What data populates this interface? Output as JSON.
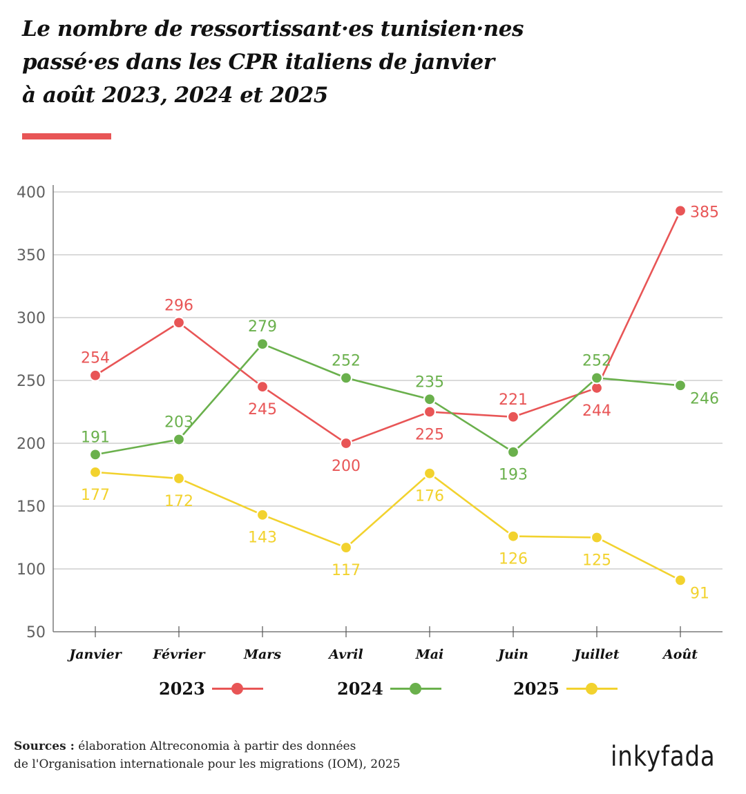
{
  "header": {
    "title_lines": [
      " Le nombre de ressortissant·es tunisien·nes",
      "passé·es dans les CPR italiens de janvier",
      "à août 2023, 2024 et 2025"
    ],
    "accent_color": "#e85556"
  },
  "chart_data": {
    "type": "line",
    "title": "Le nombre de ressortissant·es tunisien·nes passé·es dans les CPR italiens de janvier à août 2023, 2024 et 2025",
    "xlabel": "",
    "ylabel": "",
    "categories": [
      "Janvier",
      "Février",
      "Mars",
      "Avril",
      "Mai",
      "Juin",
      "Juillet",
      "Août"
    ],
    "ylim": [
      50,
      400
    ],
    "yticks": [
      50,
      100,
      150,
      200,
      250,
      300,
      350,
      400
    ],
    "grid": true,
    "legend_position": "bottom",
    "series": [
      {
        "name": "2023",
        "color": "#e85556",
        "values": [
          254,
          296,
          245,
          200,
          225,
          221,
          244,
          385
        ],
        "label_positions": [
          "above",
          "above",
          "below",
          "below",
          "below",
          "above",
          "below",
          "right"
        ]
      },
      {
        "name": "2024",
        "color": "#6ab04c",
        "values": [
          191,
          203,
          279,
          252,
          235,
          193,
          252,
          246
        ],
        "label_positions": [
          "above",
          "above",
          "above",
          "above",
          "above",
          "below",
          "above",
          "right-below"
        ]
      },
      {
        "name": "2025",
        "color": "#f2d22e",
        "values": [
          177,
          172,
          143,
          117,
          176,
          126,
          125,
          91
        ],
        "label_positions": [
          "below",
          "below",
          "below",
          "below",
          "below",
          "below",
          "below",
          "right-below"
        ]
      }
    ]
  },
  "legend": {
    "items": [
      {
        "label": "2023",
        "color": "#e85556"
      },
      {
        "label": "2024",
        "color": "#6ab04c"
      },
      {
        "label": "2025",
        "color": "#f2d22e"
      }
    ]
  },
  "footer": {
    "sources_label": "Sources :",
    "sources_line1": " élaboration Altreconomia à partir des données",
    "sources_line2": "de l'Organisation internationale pour les migrations (IOM), 2025"
  },
  "logo": {
    "text": "inkyfada",
    "icon": "inkyfada-diamond-logo-icon"
  }
}
